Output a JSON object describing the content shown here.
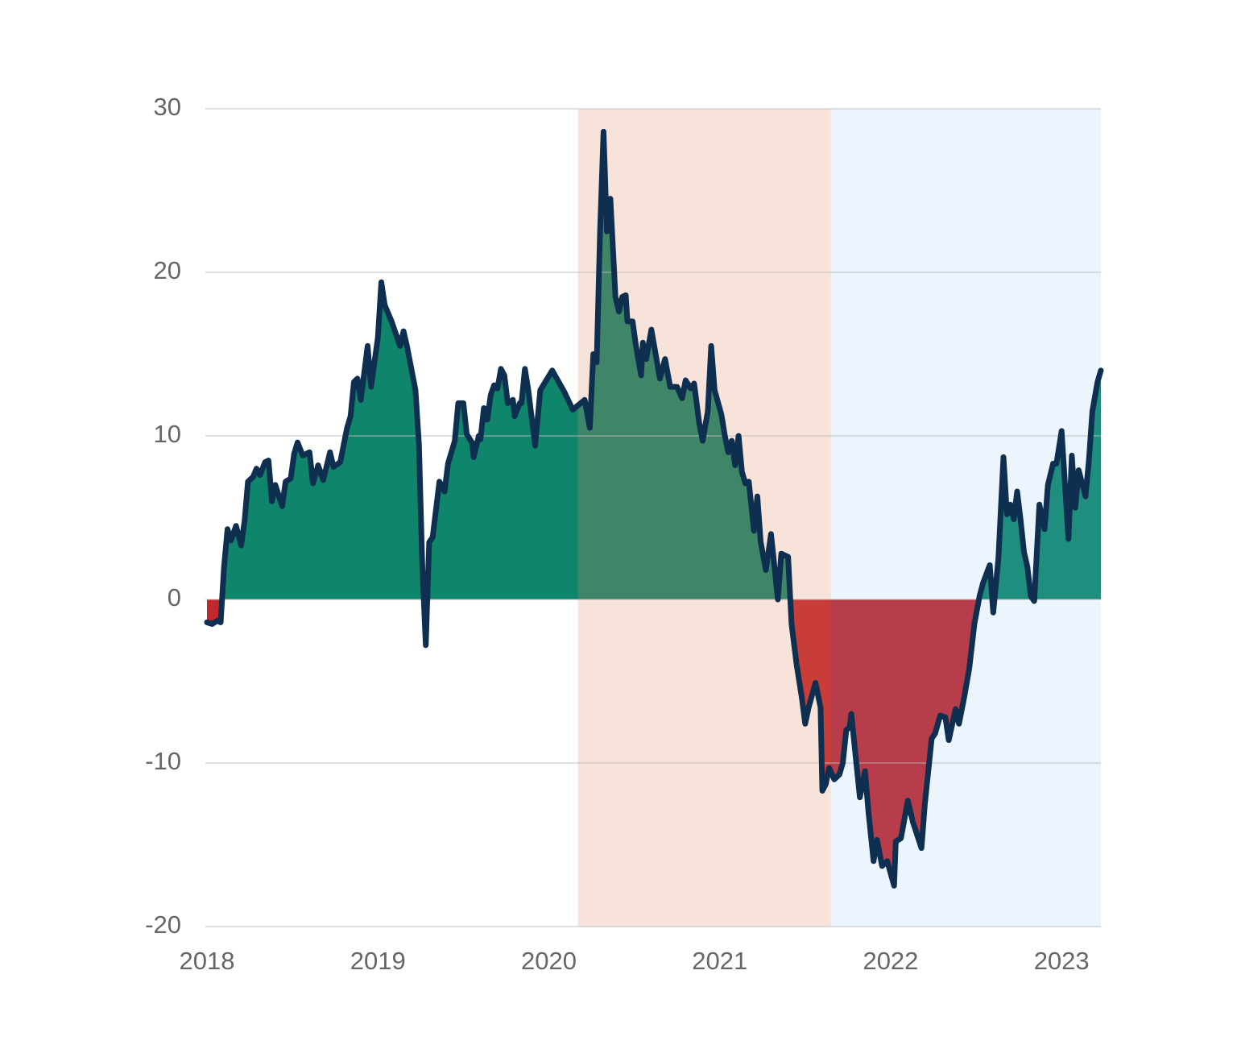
{
  "chart_data": {
    "type": "area",
    "x": [
      2018.0,
      2018.03,
      2018.06,
      2018.08,
      2018.1,
      2018.12,
      2018.14,
      2018.17,
      2018.2,
      2018.22,
      2018.24,
      2018.27,
      2018.29,
      2018.31,
      2018.34,
      2018.36,
      2018.38,
      2018.4,
      2018.44,
      2018.46,
      2018.49,
      2018.51,
      2018.53,
      2018.56,
      2018.6,
      2018.62,
      2018.65,
      2018.68,
      2018.72,
      2018.74,
      2018.78,
      2018.82,
      2018.84,
      2018.86,
      2018.88,
      2018.9,
      2018.94,
      2018.96,
      2019.0,
      2019.02,
      2019.04,
      2019.08,
      2019.13,
      2019.15,
      2019.17,
      2019.22,
      2019.24,
      2019.26,
      2019.28,
      2019.3,
      2019.32,
      2019.36,
      2019.39,
      2019.41,
      2019.45,
      2019.47,
      2019.5,
      2019.52,
      2019.55,
      2019.56,
      2019.59,
      2019.6,
      2019.62,
      2019.64,
      2019.66,
      2019.68,
      2019.7,
      2019.72,
      2019.74,
      2019.76,
      2019.79,
      2019.8,
      2019.83,
      2019.84,
      2019.86,
      2019.88,
      2019.92,
      2019.95,
      2020.02,
      2020.09,
      2020.14,
      2020.21,
      2020.24,
      2020.26,
      2020.28,
      2020.3,
      2020.32,
      2020.34,
      2020.36,
      2020.39,
      2020.41,
      2020.43,
      2020.45,
      2020.46,
      2020.49,
      2020.51,
      2020.54,
      2020.55,
      2020.57,
      2020.6,
      2020.63,
      2020.65,
      2020.68,
      2020.71,
      2020.75,
      2020.78,
      2020.8,
      2020.83,
      2020.85,
      2020.88,
      2020.9,
      2020.93,
      2020.95,
      2020.97,
      2021.01,
      2021.03,
      2021.05,
      2021.07,
      2021.09,
      2021.11,
      2021.13,
      2021.15,
      2021.17,
      2021.2,
      2021.22,
      2021.24,
      2021.27,
      2021.3,
      2021.34,
      2021.36,
      2021.4,
      2021.42,
      2021.45,
      2021.48,
      2021.5,
      2021.52,
      2021.56,
      2021.59,
      2021.6,
      2021.62,
      2021.64,
      2021.67,
      2021.7,
      2021.72,
      2021.74,
      2021.76,
      2021.77,
      2021.8,
      2021.82,
      2021.85,
      2021.87,
      2021.9,
      2021.92,
      2021.95,
      2021.98,
      2022.02,
      2022.03,
      2022.06,
      2022.1,
      2022.13,
      2022.18,
      2022.2,
      2022.24,
      2022.26,
      2022.29,
      2022.32,
      2022.34,
      2022.38,
      2022.4,
      2022.43,
      2022.46,
      2022.49,
      2022.52,
      2022.54,
      2022.58,
      2022.6,
      2022.63,
      2022.66,
      2022.68,
      2022.7,
      2022.72,
      2022.74,
      2022.76,
      2022.78,
      2022.8,
      2022.82,
      2022.84,
      2022.87,
      2022.9,
      2022.92,
      2022.95,
      2022.97,
      2023.0,
      2023.04,
      2023.06,
      2023.08,
      2023.1,
      2023.14,
      2023.16,
      2023.18,
      2023.21,
      2023.23
    ],
    "values": [
      -1.4,
      -1.5,
      -1.3,
      -1.4,
      2.0,
      4.3,
      3.6,
      4.5,
      3.3,
      4.8,
      7.2,
      7.5,
      8.0,
      7.6,
      8.4,
      8.5,
      6.0,
      7.0,
      5.7,
      7.2,
      7.4,
      8.9,
      9.6,
      8.8,
      9.0,
      7.1,
      8.2,
      7.3,
      9.0,
      8.1,
      8.4,
      10.5,
      11.2,
      13.3,
      13.5,
      12.2,
      15.5,
      13.0,
      16.0,
      19.4,
      18.0,
      17.0,
      15.5,
      16.4,
      15.5,
      12.8,
      9.5,
      2.0,
      -2.8,
      3.5,
      3.8,
      7.2,
      6.6,
      8.3,
      9.7,
      12.0,
      12.0,
      10.1,
      9.6,
      8.7,
      10.0,
      9.8,
      11.7,
      11.0,
      12.5,
      13.1,
      12.9,
      14.1,
      13.7,
      12.0,
      12.2,
      11.2,
      12.0,
      12.0,
      14.1,
      12.8,
      9.4,
      12.8,
      14.0,
      12.7,
      11.6,
      12.2,
      10.5,
      15.0,
      14.5,
      22.5,
      28.6,
      22.5,
      24.5,
      18.5,
      17.6,
      18.5,
      18.6,
      17.0,
      17.0,
      15.5,
      13.7,
      15.7,
      14.7,
      16.5,
      14.7,
      13.5,
      14.7,
      13.0,
      13.0,
      12.3,
      13.4,
      12.9,
      13.2,
      10.8,
      9.7,
      11.5,
      15.5,
      12.8,
      11.3,
      10.0,
      9.0,
      9.7,
      8.2,
      10.0,
      7.8,
      7.1,
      7.2,
      4.2,
      6.3,
      3.5,
      1.8,
      4.0,
      0.0,
      2.8,
      2.6,
      -1.5,
      -4.0,
      -6.0,
      -7.6,
      -6.6,
      -5.1,
      -6.6,
      -11.7,
      -11.3,
      -10.3,
      -11.0,
      -10.7,
      -10.0,
      -8.0,
      -7.8,
      -7.0,
      -10.1,
      -12.1,
      -10.5,
      -13.0,
      -16.0,
      -14.7,
      -16.3,
      -16.0,
      -17.5,
      -14.8,
      -14.6,
      -12.3,
      -13.6,
      -15.2,
      -12.5,
      -8.5,
      -8.2,
      -7.1,
      -7.2,
      -8.6,
      -6.7,
      -7.6,
      -6.0,
      -4.2,
      -1.5,
      0.2,
      1.0,
      2.1,
      -0.8,
      2.5,
      8.7,
      5.2,
      5.8,
      4.9,
      6.6,
      4.9,
      2.9,
      2.0,
      0.2,
      -0.1,
      5.8,
      4.3,
      7.0,
      8.3,
      8.3,
      10.3,
      3.7,
      8.8,
      5.6,
      7.9,
      6.3,
      8.5,
      11.5,
      13.3,
      14.0
    ],
    "line_color": "#0e2f4f",
    "positive_color": "#0f866c",
    "negative_color": "#c1272d",
    "shaded_regions": [
      {
        "xlim": [
          2020.17,
          2021.65
        ],
        "color": "#e28760"
      },
      {
        "xlim": [
          2021.65,
          2023.23
        ],
        "color": "#82bef0"
      }
    ],
    "xlim": [
      2018,
      2023.23
    ],
    "xticks": [
      2018,
      2019,
      2020,
      2021,
      2022,
      2023
    ],
    "ylim": [
      -20,
      30
    ],
    "yticks": [
      -20,
      -10,
      0,
      10,
      20,
      30
    ],
    "grid": true
  }
}
